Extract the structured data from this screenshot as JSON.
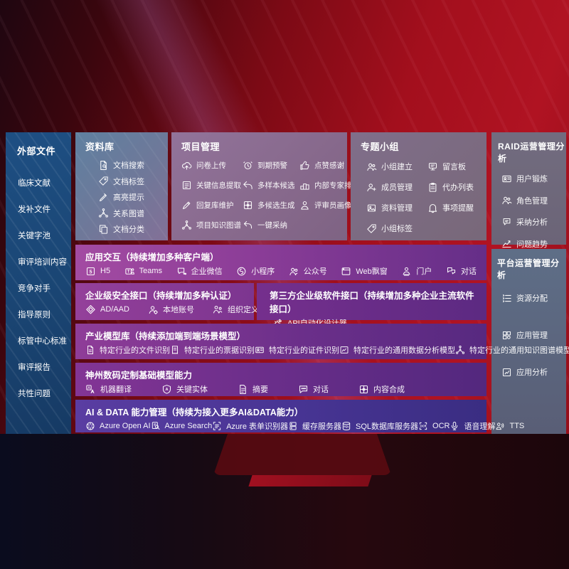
{
  "colors": {
    "background_red": "#a30f1d",
    "background_dark": "#0d0812",
    "sidebar_blue": "#1e4f83",
    "panel_slate": "#5f80a0",
    "panel_mauve": "#87698c",
    "row_purple_left": "#a34ba2",
    "row_purple_right": "#652e88",
    "row_indigo": "#473493",
    "text": "#ffffff"
  },
  "sidebar": {
    "title": "外部文件",
    "items": [
      "临床文献",
      "发补文件",
      "关键字池",
      "审评培训内容",
      "竞争对手",
      "指导原则",
      "标管中心标准",
      "审评报告",
      "共性问题"
    ]
  },
  "repo": {
    "title": "资料库",
    "items": [
      {
        "icon": "doc-search",
        "label": "文档搜索"
      },
      {
        "icon": "tag",
        "label": "文档标签"
      },
      {
        "icon": "highlighter",
        "label": "高亮提示"
      },
      {
        "icon": "graph",
        "label": "关系图谱"
      },
      {
        "icon": "doc-copy",
        "label": "文档分类"
      }
    ]
  },
  "project": {
    "title": "项目管理",
    "items": [
      {
        "icon": "cloud-upload",
        "label": "问卷上传"
      },
      {
        "icon": "alarm",
        "label": "到期预警"
      },
      {
        "icon": "thumb-up",
        "label": "点赞感谢"
      },
      {
        "icon": "doc-extract",
        "label": "关键信息提取"
      },
      {
        "icon": "reply-arrow",
        "label": "多样本候选"
      },
      {
        "icon": "ranking",
        "label": "内部专家排名"
      },
      {
        "icon": "pen",
        "label": "回复库维护"
      },
      {
        "icon": "grid-gen",
        "label": "多候选生成"
      },
      {
        "icon": "person",
        "label": "评审员画像"
      },
      {
        "icon": "graph",
        "label": "项目知识图谱"
      },
      {
        "icon": "adopt-arrow",
        "label": "一键采纳"
      }
    ]
  },
  "group": {
    "title": "专题小组",
    "items": [
      {
        "icon": "people",
        "label": "小组建立"
      },
      {
        "icon": "bbs-board",
        "label": "留言板"
      },
      {
        "icon": "person-add",
        "label": "成员管理"
      },
      {
        "icon": "todo-list",
        "label": "代办列表"
      },
      {
        "icon": "photo-archive",
        "label": "资料管理"
      },
      {
        "icon": "bell",
        "label": "事项提醒"
      },
      {
        "icon": "tag",
        "label": "小组标签"
      }
    ]
  },
  "raid": {
    "title": "RAID运营管理分析",
    "items": [
      {
        "icon": "id-card",
        "label": "用户锻炼"
      },
      {
        "icon": "people",
        "label": "角色管理"
      },
      {
        "icon": "qa-chat",
        "label": "采纳分析"
      },
      {
        "icon": "trend-chart",
        "label": "问题趋势"
      }
    ]
  },
  "platform": {
    "title": "平台运营管理分析",
    "items": [
      {
        "icon": "alloc-list",
        "label": "资源分配"
      },
      {
        "icon": "apps-grid",
        "label": "应用管理"
      },
      {
        "icon": "chart-box",
        "label": "应用分析"
      }
    ]
  },
  "row_interaction": {
    "title": "应用交互（持续增加多种客户端）",
    "items": [
      {
        "icon": "h5",
        "label": "H5"
      },
      {
        "icon": "teams",
        "label": "Teams"
      },
      {
        "icon": "wechat-work",
        "label": "企业微信"
      },
      {
        "icon": "mini-program",
        "label": "小程序"
      },
      {
        "icon": "official-account",
        "label": "公众号"
      },
      {
        "icon": "web-window",
        "label": "Web飘窗"
      },
      {
        "icon": "portal",
        "label": "门户"
      },
      {
        "icon": "dialog",
        "label": "对话"
      }
    ]
  },
  "row_security": {
    "title": "企业级安全接口（持续增加多种认证）",
    "items": [
      {
        "icon": "ad-shield",
        "label": "AD/AAD"
      },
      {
        "icon": "local-account",
        "label": "本地账号"
      },
      {
        "icon": "org-define",
        "label": "组织定义"
      }
    ]
  },
  "row_thirdparty": {
    "title": "第三方企业级软件接口（持续增加多种企业主流软件接口）",
    "items": [
      {
        "icon": "api-gear",
        "label": "API自动化设计器"
      }
    ]
  },
  "row_models": {
    "title": "产业模型库（持续添加端到端场景模型）",
    "items": [
      {
        "icon": "file-recog",
        "label": "特定行业的文件识别"
      },
      {
        "icon": "receipt",
        "label": "特定行业的票据识别"
      },
      {
        "icon": "id-card",
        "label": "特定行业的证件识别"
      },
      {
        "icon": "data-model",
        "label": "特定行业的通用数据分析模型"
      },
      {
        "icon": "graph",
        "label": "特定行业的通用知识图谱模型"
      }
    ]
  },
  "row_base": {
    "title": "神州数码定制基础模型能力",
    "items": [
      {
        "icon": "translate",
        "label": "机器翻译"
      },
      {
        "icon": "entity-shield",
        "label": "关键实体"
      },
      {
        "icon": "summary-doc",
        "label": "摘要"
      },
      {
        "icon": "chat-dots",
        "label": "对话"
      },
      {
        "icon": "compose",
        "label": "内容合成"
      }
    ]
  },
  "row_ai": {
    "title": "AI & DATA 能力管理（持续为接入更多AI&DATA能力）",
    "items": [
      {
        "icon": "openai",
        "label": "Azure Open AI"
      },
      {
        "icon": "azure-search",
        "label": "Azure Search"
      },
      {
        "icon": "form-recognizer",
        "label": "Azure 表单识别器"
      },
      {
        "icon": "cache-server",
        "label": "缓存服务器"
      },
      {
        "icon": "sql-db",
        "label": "SQL数据库服务器"
      },
      {
        "icon": "ocr",
        "label": "OCR"
      },
      {
        "icon": "speech",
        "label": "语音理解"
      },
      {
        "icon": "tts",
        "label": "TTS"
      }
    ]
  }
}
